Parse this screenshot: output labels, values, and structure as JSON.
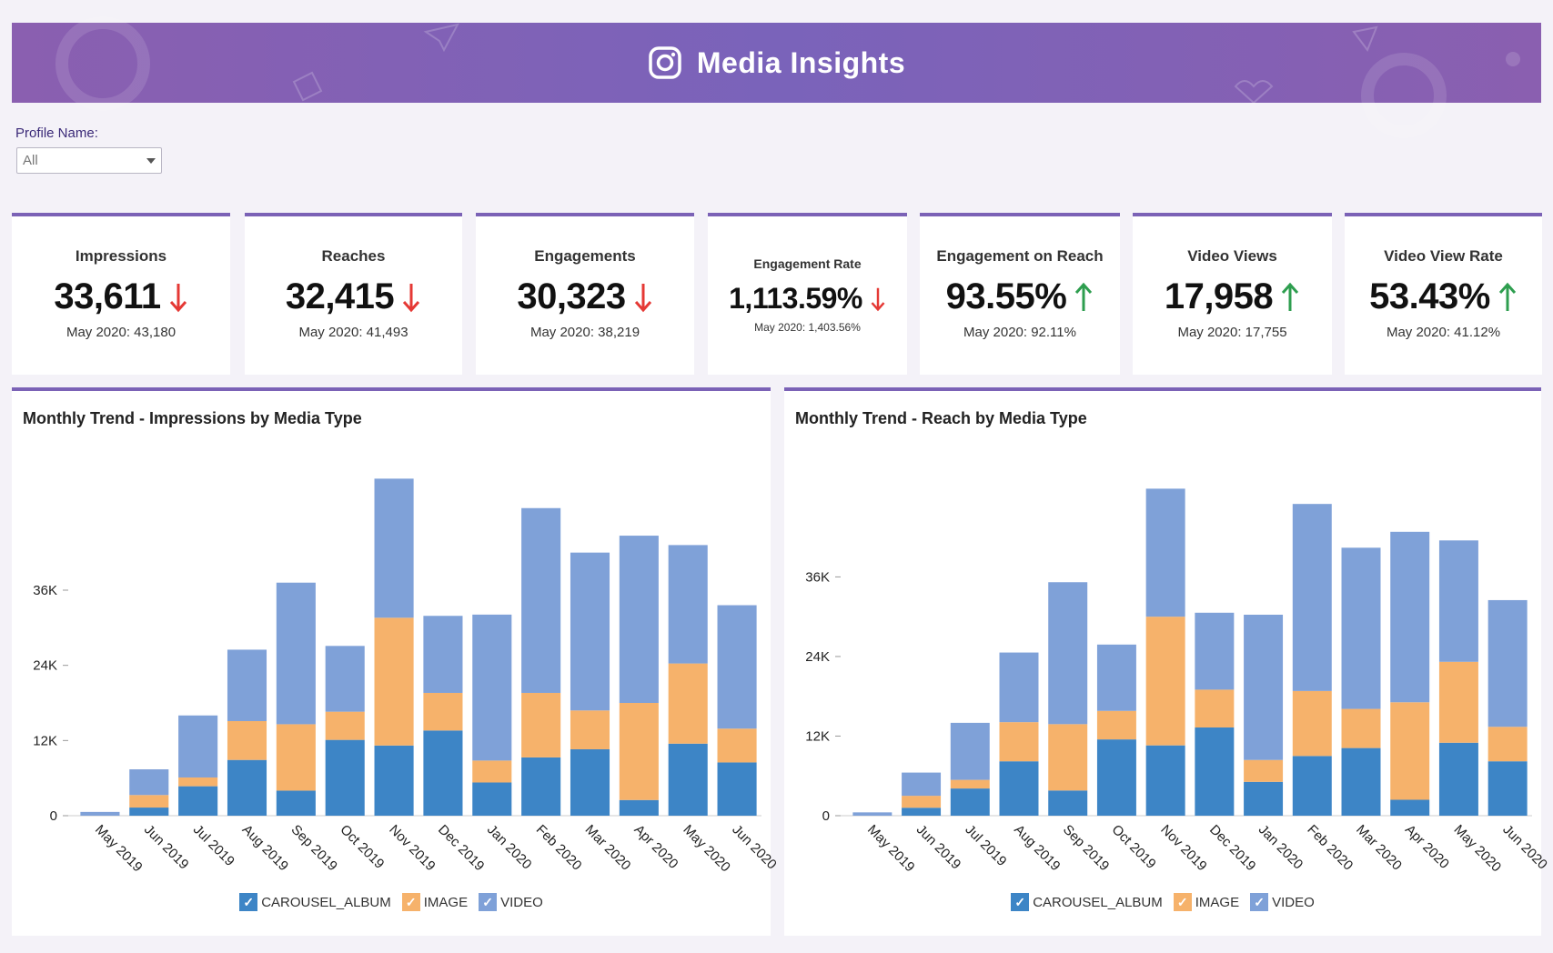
{
  "header": {
    "title": "Media Insights",
    "icon": "instagram-icon"
  },
  "filter": {
    "label": "Profile Name:",
    "value": "All"
  },
  "kpis": [
    {
      "title": "Impressions",
      "value": "33,611",
      "trend": "down",
      "prev": "May 2020: 43,180"
    },
    {
      "title": "Reaches",
      "value": "32,415",
      "trend": "down",
      "prev": "May 2020: 41,493"
    },
    {
      "title": "Engagements",
      "value": "30,323",
      "trend": "down",
      "prev": "May 2020: 38,219"
    },
    {
      "title": "Engagement Rate",
      "value": "1,113.59%",
      "trend": "down",
      "prev": "May 2020: 1,403.56%"
    },
    {
      "title": "Engagement on Reach",
      "value": "93.55%",
      "trend": "up",
      "prev": "May 2020: 92.11%"
    },
    {
      "title": "Video Views",
      "value": "17,958",
      "trend": "up",
      "prev": "May 2020: 17,755"
    },
    {
      "title": "Video View Rate",
      "value": "53.43%",
      "trend": "up",
      "prev": "May 2020: 41.12%"
    }
  ],
  "colors": {
    "carousel": "#3d85c6",
    "image": "#f6b26b",
    "video": "#7fa1d8",
    "down": "#e53935",
    "up": "#2e9e4f",
    "accent": "#7b62b6"
  },
  "chart_data": [
    {
      "type": "bar",
      "stacked": true,
      "title": "Monthly Trend - Impressions by Media Type",
      "categories": [
        "May 2019",
        "Jun 2019",
        "Jul 2019",
        "Aug 2019",
        "Sep 2019",
        "Oct 2019",
        "Nov 2019",
        "Dec 2019",
        "Jan 2020",
        "Feb 2020",
        "Mar 2020",
        "Apr 2020",
        "May 2020",
        "Jun 2020"
      ],
      "series": [
        {
          "name": "CAROUSEL_ALBUM",
          "values": [
            0,
            1300,
            4700,
            8900,
            4000,
            12100,
            11200,
            13600,
            5300,
            9300,
            10600,
            2500,
            11500,
            8500
          ]
        },
        {
          "name": "IMAGE",
          "values": [
            0,
            2000,
            1400,
            6200,
            10600,
            4500,
            20400,
            6000,
            3500,
            10300,
            6200,
            15500,
            12800,
            5400
          ]
        },
        {
          "name": "VIDEO",
          "values": [
            600,
            4100,
            9900,
            11400,
            22600,
            10500,
            22200,
            12300,
            23300,
            29500,
            25200,
            26700,
            18900,
            19700
          ]
        }
      ],
      "yticks": [
        "0",
        "12K",
        "24K",
        "36K"
      ],
      "ylim": [
        0,
        54000
      ],
      "legend": "bottom"
    },
    {
      "type": "bar",
      "stacked": true,
      "title": "Monthly Trend - Reach by Media Type",
      "categories": [
        "May 2019",
        "Jun 2019",
        "Jul 2019",
        "Aug 2019",
        "Sep 2019",
        "Oct 2019",
        "Nov 2019",
        "Dec 2019",
        "Jan 2020",
        "Feb 2020",
        "Mar 2020",
        "Apr 2020",
        "May 2020",
        "Jun 2020"
      ],
      "series": [
        {
          "name": "CAROUSEL_ALBUM",
          "values": [
            0,
            1200,
            4100,
            8200,
            3800,
            11500,
            10600,
            13300,
            5100,
            9000,
            10200,
            2400,
            11000,
            8200
          ]
        },
        {
          "name": "IMAGE",
          "values": [
            0,
            1800,
            1300,
            5900,
            10000,
            4300,
            19400,
            5700,
            3300,
            9800,
            5900,
            14700,
            12200,
            5200
          ]
        },
        {
          "name": "VIDEO",
          "values": [
            500,
            3500,
            8600,
            10500,
            21400,
            10000,
            19300,
            11600,
            21900,
            28200,
            24300,
            25700,
            18300,
            19100
          ]
        }
      ],
      "yticks": [
        "0",
        "12K",
        "24K",
        "36K"
      ],
      "ylim": [
        0,
        51000
      ],
      "legend": "bottom"
    }
  ]
}
